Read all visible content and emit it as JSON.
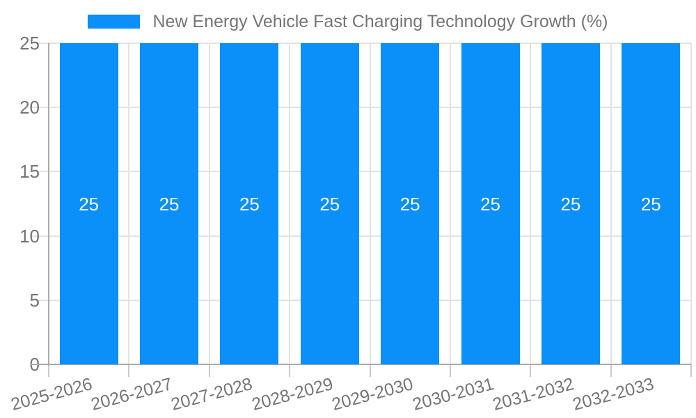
{
  "chart_data": {
    "type": "bar",
    "title": "New Energy Vehicle Fast Charging Technology Growth (%)",
    "categories": [
      "2025-2026",
      "2026-2027",
      "2027-2028",
      "2028-2029",
      "2029-2030",
      "2030-2031",
      "2031-2032",
      "2032-2033"
    ],
    "series": [
      {
        "name": "New Energy Vehicle Fast Charging Technology Growth (%)",
        "values": [
          25,
          25,
          25,
          25,
          25,
          25,
          25,
          25
        ]
      }
    ],
    "bar_value_labels": [
      "25",
      "25",
      "25",
      "25",
      "25",
      "25",
      "25",
      "25"
    ],
    "xlabel": "",
    "ylabel": "",
    "ylim": [
      0,
      25
    ],
    "yticks": [
      0,
      5,
      10,
      15,
      20,
      25
    ],
    "ytick_labels": [
      "0",
      "5",
      "10",
      "15",
      "20",
      "25"
    ],
    "x_label_rotation_deg": -15,
    "grid": true,
    "legend_position": "top-center",
    "colors": {
      "bar": "#0b8ff8",
      "text": "#757575",
      "grid": "#e3e3e3",
      "axis": "#ababab",
      "tick": "#c9c9c9",
      "value_label": "#ffffff",
      "background": "#ffffff"
    }
  }
}
